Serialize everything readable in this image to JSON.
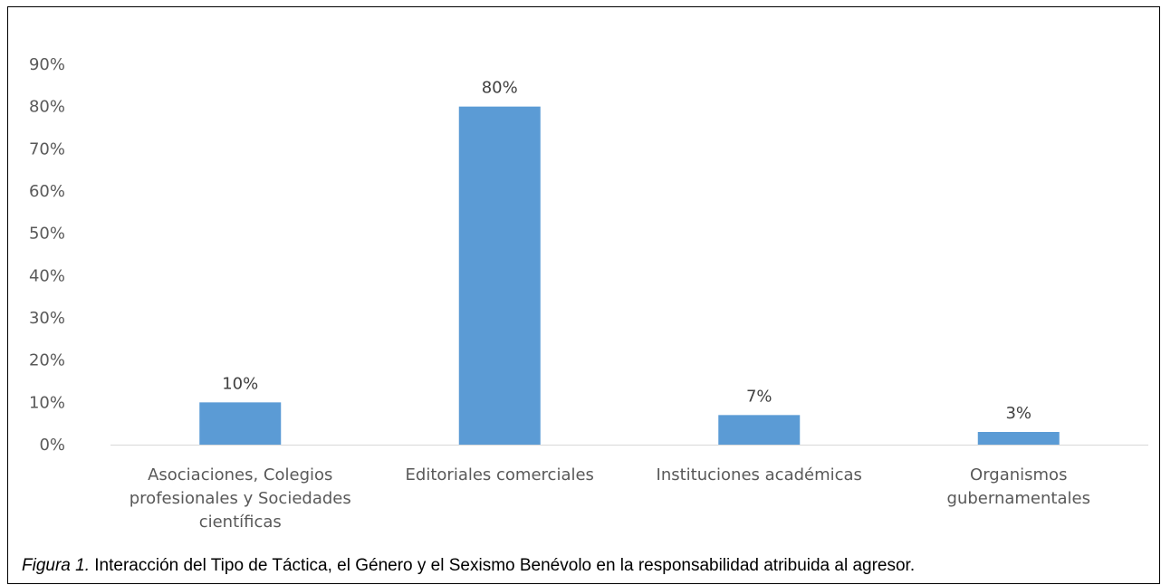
{
  "chart_data": {
    "type": "bar",
    "categories": [
      [
        "Asociaciones, Colegios",
        "profesionales  y Sociedades",
        "científicas"
      ],
      [
        "Editoriales comerciales"
      ],
      [
        "Instituciones académicas"
      ],
      [
        "Organismos",
        "gubernamentales"
      ]
    ],
    "values": [
      10,
      80,
      7,
      3
    ],
    "data_labels": [
      "10%",
      "80%",
      "7%",
      "3%"
    ],
    "y_ticks": [
      "0%",
      "10%",
      "20%",
      "30%",
      "40%",
      "50%",
      "60%",
      "70%",
      "80%",
      "90%"
    ],
    "ylim": [
      0,
      90
    ],
    "y_unit": "%",
    "grid": false,
    "legend": "none",
    "bar_color": "#5b9bd5",
    "axis_color": "#d9d9d9"
  },
  "caption": {
    "figure_label": "Figura 1.",
    "text": " Interacción del Tipo de Táctica, el Género y el Sexismo Benévolo en la responsabilidad atribuida al agresor."
  }
}
